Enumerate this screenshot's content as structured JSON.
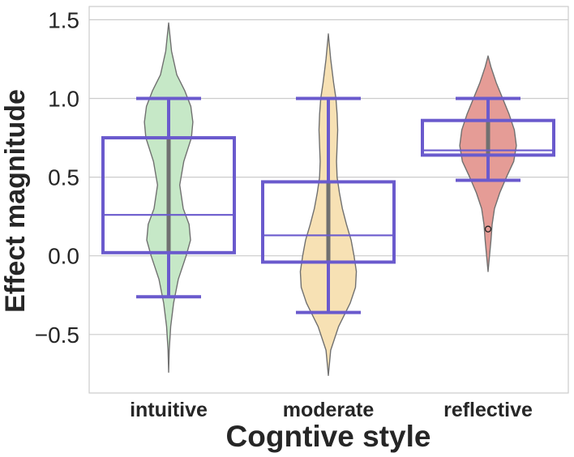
{
  "chart_data": {
    "type": "violin",
    "title": "",
    "xlabel": "Cogntive style",
    "ylabel": "Effect magnitude",
    "categories": [
      "intuitive",
      "moderate",
      "reflective"
    ],
    "ylim": [
      -0.88,
      1.6
    ],
    "yticks": [
      -0.5,
      0.0,
      0.5,
      1.0,
      1.5
    ],
    "ytick_labels": [
      "−0.5",
      "0.0",
      "0.5",
      "1.0",
      "1.5"
    ],
    "grid": "horizontal",
    "legend": "none",
    "violins": [
      {
        "category": "intuitive",
        "color": "#c6e8c7",
        "min": -0.74,
        "max": 1.48,
        "density": [
          [
            -0.74,
            0.0
          ],
          [
            -0.6,
            0.02
          ],
          [
            -0.45,
            0.07
          ],
          [
            -0.3,
            0.17
          ],
          [
            -0.15,
            0.33
          ],
          [
            0.0,
            0.6
          ],
          [
            0.1,
            0.75
          ],
          [
            0.2,
            0.7
          ],
          [
            0.3,
            0.5
          ],
          [
            0.45,
            0.38
          ],
          [
            0.6,
            0.52
          ],
          [
            0.75,
            0.78
          ],
          [
            0.85,
            0.83
          ],
          [
            0.95,
            0.76
          ],
          [
            1.05,
            0.55
          ],
          [
            1.15,
            0.28
          ],
          [
            1.3,
            0.1
          ],
          [
            1.48,
            0.0
          ]
        ],
        "inner_box": {
          "q1": 0.02,
          "q3": 0.75,
          "median": 0.26
        }
      },
      {
        "category": "moderate",
        "color": "#f7e1b4",
        "min": -0.76,
        "max": 1.41,
        "density": [
          [
            -0.76,
            0.0
          ],
          [
            -0.6,
            0.08
          ],
          [
            -0.45,
            0.35
          ],
          [
            -0.3,
            0.75
          ],
          [
            -0.2,
            0.93
          ],
          [
            -0.1,
            0.96
          ],
          [
            0.0,
            0.88
          ],
          [
            0.1,
            0.78
          ],
          [
            0.2,
            0.62
          ],
          [
            0.3,
            0.48
          ],
          [
            0.4,
            0.38
          ],
          [
            0.5,
            0.3
          ],
          [
            0.6,
            0.28
          ],
          [
            0.7,
            0.3
          ],
          [
            0.8,
            0.32
          ],
          [
            0.9,
            0.3
          ],
          [
            1.0,
            0.26
          ],
          [
            1.1,
            0.18
          ],
          [
            1.25,
            0.08
          ],
          [
            1.41,
            0.0
          ]
        ],
        "inner_box": {
          "q1": -0.04,
          "q3": 0.47,
          "median": 0.13
        }
      },
      {
        "category": "reflective",
        "color": "#e59c96",
        "min": -0.1,
        "max": 1.27,
        "density": [
          [
            -0.1,
            0.0
          ],
          [
            0.0,
            0.05
          ],
          [
            0.1,
            0.1
          ],
          [
            0.2,
            0.14
          ],
          [
            0.3,
            0.22
          ],
          [
            0.4,
            0.4
          ],
          [
            0.5,
            0.63
          ],
          [
            0.6,
            0.88
          ],
          [
            0.7,
            0.97
          ],
          [
            0.8,
            0.9
          ],
          [
            0.9,
            0.72
          ],
          [
            1.0,
            0.5
          ],
          [
            1.1,
            0.28
          ],
          [
            1.2,
            0.1
          ],
          [
            1.27,
            0.0
          ]
        ]
      }
    ],
    "boxes": [
      {
        "category": "intuitive",
        "q1": 0.02,
        "q3": 0.75,
        "median": 0.26,
        "whisker_low": -0.26,
        "whisker_high": 1.0,
        "outliers": []
      },
      {
        "category": "moderate",
        "q1": -0.04,
        "q3": 0.47,
        "median": 0.13,
        "whisker_low": -0.36,
        "whisker_high": 1.0,
        "outliers": []
      },
      {
        "category": "reflective",
        "q1": 0.64,
        "q3": 0.86,
        "median": 0.67,
        "whisker_low": 0.48,
        "whisker_high": 1.0,
        "outliers": [
          0.17
        ]
      }
    ],
    "box_color": "#6a5acd"
  }
}
